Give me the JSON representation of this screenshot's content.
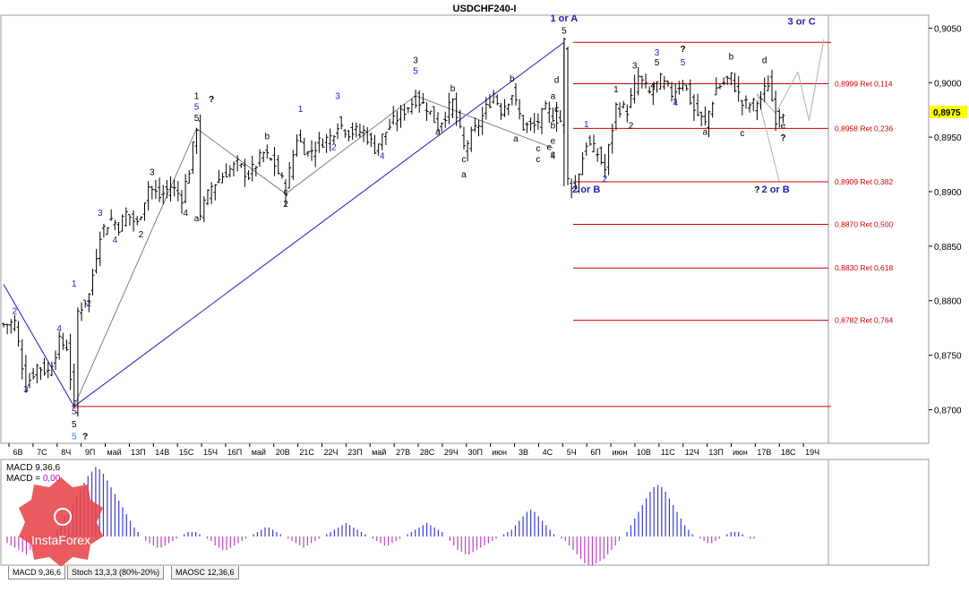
{
  "chart_data": {
    "type": "candlestick",
    "title": "USDCHF240-I",
    "price_axis": {
      "min": 0.867,
      "max": 0.9061,
      "ticks": [
        "0,9050",
        "0,9000",
        "0,8950",
        "0,8900",
        "0,8850",
        "0,8800",
        "0,8750",
        "0,8700"
      ],
      "current": "0,8975"
    },
    "x_labels": [
      "6В",
      "7С",
      "8Ч",
      "9П",
      "май",
      "13П",
      "14В",
      "15С",
      "15Ч",
      "16П",
      "май",
      "20В",
      "21С",
      "22Ч",
      "23П",
      "май",
      "27В",
      "28С",
      "29Ч",
      "30П",
      "июн",
      "3В",
      "4С",
      "5Ч",
      "6П",
      "июн",
      "10В",
      "11С",
      "12Ч",
      "13П",
      "июн",
      "17В",
      "18С",
      "19Ч"
    ],
    "fib_levels": [
      {
        "price": 0.9037,
        "label": ""
      },
      {
        "price": 0.8999,
        "label": "0,8999 Ret 0,114"
      },
      {
        "price": 0.8958,
        "label": "0,8958 Ret 0,236"
      },
      {
        "price": 0.8909,
        "label": "0,8909 Ret 0,382"
      },
      {
        "price": 0.887,
        "label": "0,8870 Ret 0,500"
      },
      {
        "price": 0.883,
        "label": "0,8830 Ret 0,618"
      },
      {
        "price": 0.8782,
        "label": "0,8782 Ret 0,764"
      },
      {
        "price": 0.8703,
        "label": ""
      }
    ],
    "wave_labels": [
      {
        "text": "2",
        "bar": 3,
        "price": 0.8788,
        "color": "#2020c0"
      },
      {
        "text": "3",
        "bar": 6,
        "price": 0.8716,
        "color": "#2020c0"
      },
      {
        "text": "4",
        "bar": 15,
        "price": 0.8772,
        "color": "#2020c0"
      },
      {
        "text": "5",
        "bar": 19,
        "price": 0.8696,
        "color": "#2020c0"
      },
      {
        "text": "5",
        "bar": 19,
        "price": 0.8684,
        "color": "#000000"
      },
      {
        "text": "5",
        "bar": 19,
        "price": 0.8673,
        "color": "#1a8fd0"
      },
      {
        "text": "?",
        "bar": 22,
        "price": 0.8673,
        "color": "#000000"
      },
      {
        "text": "1",
        "bar": 19,
        "price": 0.8813,
        "color": "#2020c0"
      },
      {
        "text": "2",
        "bar": 23,
        "price": 0.8795,
        "color": "#2020c0"
      },
      {
        "text": "3",
        "bar": 26,
        "price": 0.8878,
        "color": "#2020c0"
      },
      {
        "text": "4",
        "bar": 30,
        "price": 0.8853,
        "color": "#2020c0"
      },
      {
        "text": "2",
        "bar": 37,
        "price": 0.8858,
        "color": "#000000"
      },
      {
        "text": "3",
        "bar": 40,
        "price": 0.8915,
        "color": "#000000"
      },
      {
        "text": "4",
        "bar": 49,
        "price": 0.8878,
        "color": "#000000"
      },
      {
        "text": "a",
        "bar": 52,
        "price": 0.8873,
        "color": "#000000"
      },
      {
        "text": "1",
        "bar": 52,
        "price": 0.8985,
        "color": "#000000"
      },
      {
        "text": "5",
        "bar": 52,
        "price": 0.8975,
        "color": "#2020c0"
      },
      {
        "text": "5",
        "bar": 52,
        "price": 0.8965,
        "color": "#000000"
      },
      {
        "text": "?",
        "bar": 56,
        "price": 0.8982,
        "color": "#000000"
      },
      {
        "text": "1",
        "bar": 80,
        "price": 0.8973,
        "color": "#2020c0"
      },
      {
        "text": "2",
        "bar": 89,
        "price": 0.8938,
        "color": "#2020c0"
      },
      {
        "text": "3",
        "bar": 90,
        "price": 0.8985,
        "color": "#2020c0"
      },
      {
        "text": "4",
        "bar": 102,
        "price": 0.893,
        "color": "#2020c0"
      },
      {
        "text": "b",
        "bar": 71,
        "price": 0.8948,
        "color": "#000000"
      },
      {
        "text": "c",
        "bar": 76,
        "price": 0.8897,
        "color": "#000000"
      },
      {
        "text": "2",
        "bar": 76,
        "price": 0.8886,
        "color": "#000000"
      },
      {
        "text": "3",
        "bar": 111,
        "price": 0.9018,
        "color": "#000000"
      },
      {
        "text": "5",
        "bar": 111,
        "price": 0.9008,
        "color": "#2020c0"
      },
      {
        "text": "a",
        "bar": 117,
        "price": 0.8952,
        "color": "#000000"
      },
      {
        "text": "b",
        "bar": 121,
        "price": 0.8992,
        "color": "#000000"
      },
      {
        "text": "c",
        "bar": 124,
        "price": 0.8927,
        "color": "#000000"
      },
      {
        "text": "a",
        "bar": 124,
        "price": 0.8913,
        "color": "#000000"
      },
      {
        "text": "b",
        "bar": 137,
        "price": 0.9001,
        "color": "#000000"
      },
      {
        "text": "a",
        "bar": 138,
        "price": 0.8946,
        "color": "#000000"
      },
      {
        "text": "c",
        "bar": 144,
        "price": 0.8937,
        "color": "#000000"
      },
      {
        "text": "e",
        "bar": 147,
        "price": 0.8938,
        "color": "#000000"
      },
      {
        "text": "c",
        "bar": 144,
        "price": 0.8927,
        "color": "#000000"
      },
      {
        "text": "d",
        "bar": 149,
        "price": 0.9,
        "color": "#000000"
      },
      {
        "text": "a",
        "bar": 148,
        "price": 0.8985,
        "color": "#000000"
      },
      {
        "text": "c",
        "bar": 149,
        "price": 0.8973,
        "color": "#000000"
      },
      {
        "text": "b",
        "bar": 148,
        "price": 0.8958,
        "color": "#000000"
      },
      {
        "text": "4",
        "bar": 148,
        "price": 0.893,
        "color": "#000000"
      },
      {
        "text": "e",
        "bar": 148,
        "price": 0.8944,
        "color": "#000000"
      },
      {
        "text": "c",
        "bar": 148,
        "price": 0.8932,
        "color": "#000000"
      },
      {
        "text": "1 or A",
        "bar": 151,
        "price": 0.9056,
        "color": "#2020c0"
      },
      {
        "text": "5",
        "bar": 151,
        "price": 0.9045,
        "color": "#000000"
      },
      {
        "text": "1",
        "bar": 157,
        "price": 0.8959,
        "color": "#2020c0"
      },
      {
        "text": "2",
        "bar": 162,
        "price": 0.8909,
        "color": "#2020c0"
      },
      {
        "text": "2 or B",
        "bar": 157,
        "price": 0.8899,
        "color": "#2020c0"
      },
      {
        "text": "1",
        "bar": 165,
        "price": 0.8991,
        "color": "#000000"
      },
      {
        "text": "2",
        "bar": 169,
        "price": 0.8958,
        "color": "#000000"
      },
      {
        "text": "3",
        "bar": 170,
        "price": 0.9013,
        "color": "#000000"
      },
      {
        "text": "3",
        "bar": 176,
        "price": 0.9025,
        "color": "#2020c0"
      },
      {
        "text": "5",
        "bar": 176,
        "price": 0.9016,
        "color": "#000000"
      },
      {
        "text": "4",
        "bar": 175,
        "price": 0.8995,
        "color": "#000000"
      },
      {
        "text": "4",
        "bar": 181,
        "price": 0.8979,
        "color": "#2020c0"
      },
      {
        "text": "5",
        "bar": 183,
        "price": 0.9016,
        "color": "#2020c0"
      },
      {
        "text": "?",
        "bar": 183,
        "price": 0.9028,
        "color": "#000000"
      },
      {
        "text": "a",
        "bar": 189,
        "price": 0.8952,
        "color": "#000000"
      },
      {
        "text": "b",
        "bar": 196,
        "price": 0.9021,
        "color": "#000000"
      },
      {
        "text": "c",
        "bar": 199,
        "price": 0.8951,
        "color": "#000000"
      },
      {
        "text": "d",
        "bar": 205,
        "price": 0.9018,
        "color": "#000000"
      },
      {
        "text": "e",
        "bar": 210,
        "price": 0.8958,
        "color": "#000000"
      },
      {
        "text": "?",
        "bar": 210,
        "price": 0.8947,
        "color": "#000000"
      },
      {
        "text": "?",
        "bar": 203,
        "price": 0.8899,
        "color": "#000000"
      },
      {
        "text": "2 or B",
        "bar": 208,
        "price": 0.8899,
        "color": "#2020c0"
      },
      {
        "text": "3 or C",
        "bar": 215,
        "price": 0.9053,
        "color": "#2020c0"
      }
    ],
    "macd": {
      "label": "MACD 9,36,6",
      "label2": "MACD = ",
      "value": "0,00",
      "histogram": [
        -3,
        -4,
        -5,
        -6,
        -7,
        -8,
        -6,
        -5,
        -4,
        -3,
        -2,
        -1,
        1,
        3,
        6,
        9,
        12,
        15,
        18,
        21,
        24,
        27,
        29,
        31,
        30,
        28,
        25,
        22,
        19,
        16,
        13,
        10,
        7,
        4,
        2,
        0,
        -2,
        -3,
        -4,
        -5,
        -5,
        -4,
        -3,
        -2,
        -1,
        0,
        1,
        2,
        2,
        2,
        1,
        0,
        -1,
        -2,
        -4,
        -5,
        -6,
        -6,
        -5,
        -4,
        -3,
        -2,
        -1,
        0,
        1,
        2,
        3,
        4,
        4,
        3,
        2,
        1,
        0,
        -1,
        -2,
        -3,
        -4,
        -5,
        -4,
        -3,
        -2,
        -1,
        0,
        1,
        2,
        3,
        4,
        5,
        6,
        5,
        4,
        3,
        2,
        1,
        0,
        -1,
        -2,
        -3,
        -4,
        -4,
        -3,
        -2,
        -1,
        0,
        1,
        2,
        3,
        4,
        5,
        6,
        5,
        4,
        3,
        2,
        0,
        -2,
        -4,
        -6,
        -7,
        -8,
        -8,
        -7,
        -6,
        -5,
        -4,
        -3,
        -2,
        -1,
        0,
        1,
        2,
        3,
        5,
        7,
        9,
        11,
        12,
        11,
        9,
        7,
        5,
        3,
        1,
        0,
        -1,
        -2,
        -4,
        -6,
        -8,
        -10,
        -12,
        -13,
        -13,
        -12,
        -11,
        -10,
        -8,
        -6,
        -4,
        -2,
        0,
        2,
        5,
        8,
        11,
        14,
        17,
        20,
        22,
        23,
        22,
        20,
        17,
        14,
        11,
        8,
        5,
        3,
        1,
        0,
        -1,
        -2,
        -3,
        -3,
        -2,
        -1,
        0,
        1,
        2,
        2,
        2,
        1,
        0,
        -1,
        -1
      ]
    },
    "indicator_tabs": [
      "MACD 9,36,6",
      "Stoch 13,3,3 (80%-20%)",
      "MAOSC 12,36,6"
    ],
    "watermark": "InstaForex"
  }
}
